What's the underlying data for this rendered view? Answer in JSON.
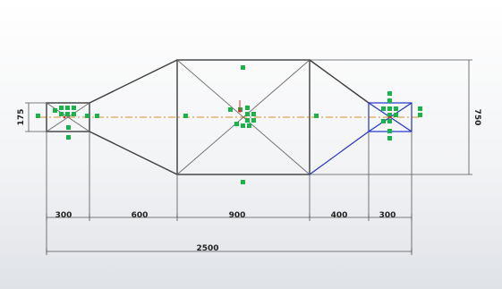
{
  "sketch": {
    "colors": {
      "geometry": "#3c3c3c",
      "selected": "#2233cc",
      "relation_marker": "#19b34a",
      "centerline": "#d98c2a",
      "background_top": "#ffffff",
      "background_bottom": "#dfe2e7"
    },
    "dimensions": {
      "left_box_width": "300",
      "taper_left_length": "600",
      "middle_length": "900",
      "taper_right_length": "400",
      "right_box_width": "300",
      "overall_length": "2500",
      "left_box_height": "175",
      "overall_height": "750"
    }
  }
}
